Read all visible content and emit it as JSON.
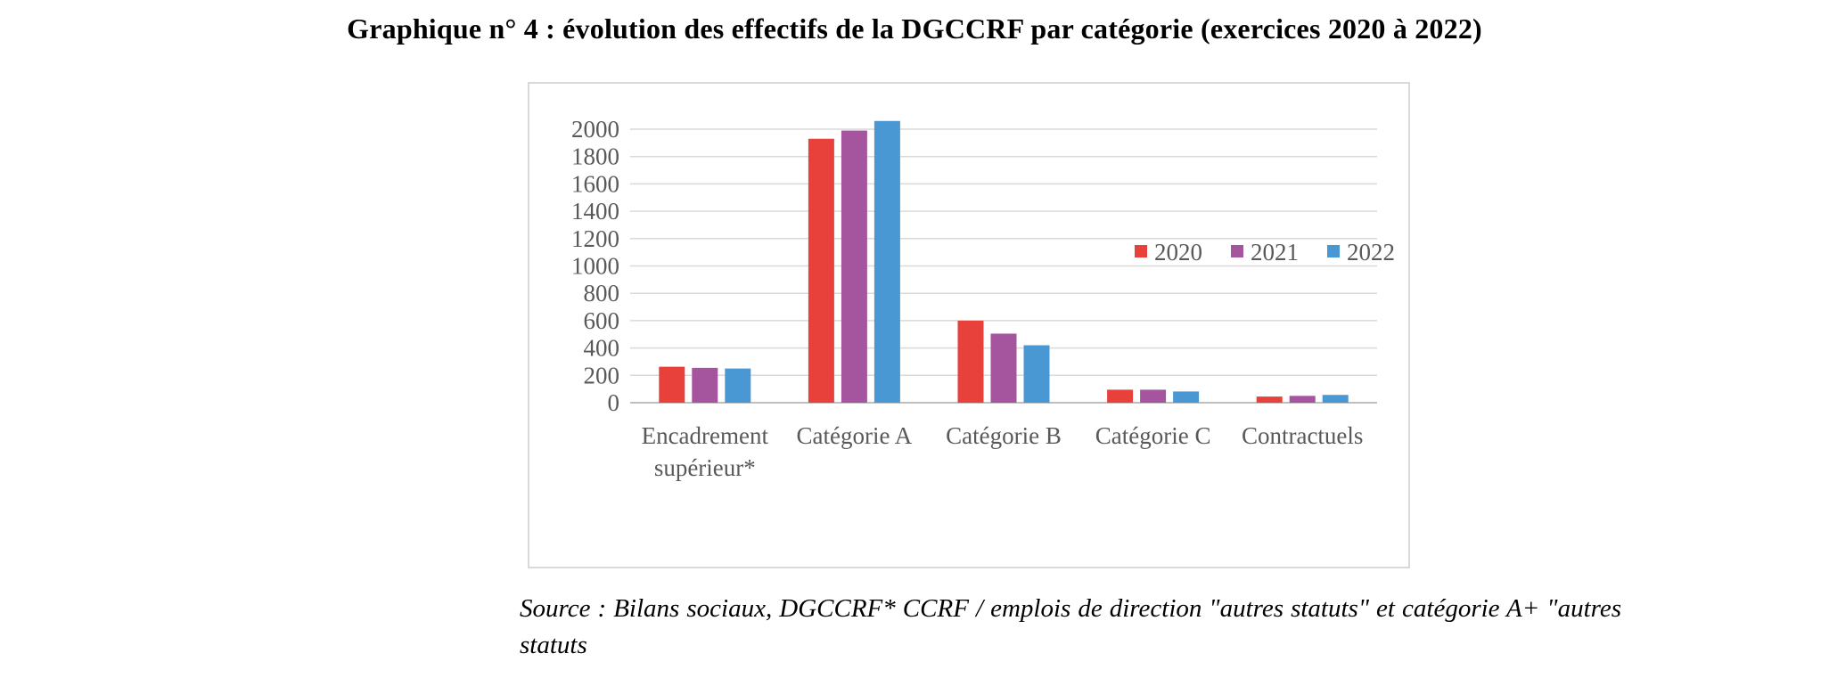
{
  "title": "Graphique n° 4 :  évolution des effectifs de la DGCCRF par catégorie (exercices 2020 à 2022)",
  "source": "Source : Bilans sociaux, DGCCRF* CCRF / emplois de direction \"autres statuts\" et catégorie A+ \"autres statuts",
  "chart_data": {
    "type": "bar",
    "categories": [
      [
        "Encadrement",
        "supérieur*"
      ],
      [
        "Catégorie A"
      ],
      [
        "Catégorie B"
      ],
      [
        "Catégorie C"
      ],
      [
        "Contractuels"
      ]
    ],
    "series": [
      {
        "name": "2020",
        "color": "#e8413c",
        "values": [
          263,
          1930,
          600,
          95,
          45
        ]
      },
      {
        "name": "2021",
        "color": "#a5559e",
        "values": [
          255,
          1990,
          505,
          95,
          50
        ]
      },
      {
        "name": "2022",
        "color": "#4a98d3",
        "values": [
          250,
          2060,
          420,
          82,
          57
        ]
      }
    ],
    "ylim": [
      0,
      2000
    ],
    "yticks": [
      "0",
      "200",
      "400",
      "600",
      "800",
      "1000",
      "1200",
      "1400",
      "1600",
      "1800",
      "2000"
    ],
    "grid": true,
    "legend_position": "right"
  }
}
